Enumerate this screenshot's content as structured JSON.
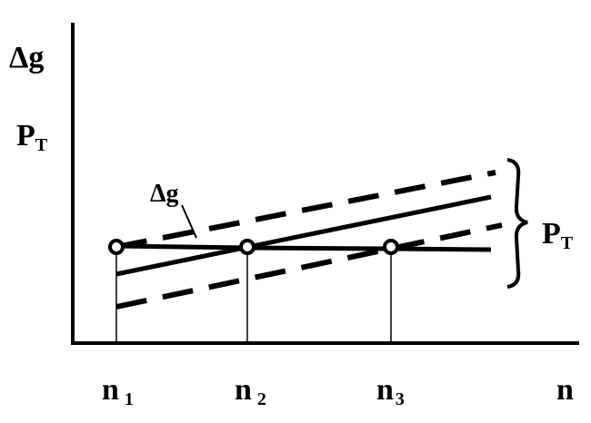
{
  "y_axis_labels": {
    "top": "Δg",
    "second": {
      "main": "P",
      "sub": "Т"
    }
  },
  "line_labels": {
    "delta_g": "Δg",
    "brace": {
      "main": "P",
      "sub": "Т"
    }
  },
  "x_axis_labels": [
    {
      "main": "n",
      "sub": "1"
    },
    {
      "main": "n",
      "sub": "2"
    },
    {
      "main": "n",
      "sub": "3"
    },
    {
      "main": "n"
    }
  ]
}
